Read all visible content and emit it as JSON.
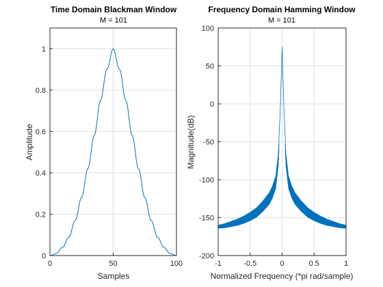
{
  "chart_data": [
    {
      "type": "line",
      "title": "Time Domain Blackman Window",
      "subtitle": "M = 101",
      "xlabel": "Samples",
      "ylabel": "Amplitude",
      "xlim": [
        0,
        100
      ],
      "ylim": [
        0,
        1.1
      ],
      "xticks": [
        "0",
        "50",
        "100"
      ],
      "yticks": [
        "0",
        "0.2",
        "0.4",
        "0.6",
        "0.8",
        "1"
      ],
      "grid": true,
      "color": "#0072bd",
      "series": [
        {
          "x": [
            0,
            5,
            10,
            15,
            20,
            25,
            30,
            35,
            40,
            45,
            50,
            55,
            60,
            65,
            70,
            75,
            80,
            85,
            90,
            95,
            100
          ],
          "y": [
            0.0,
            0.01,
            0.04,
            0.09,
            0.17,
            0.28,
            0.42,
            0.58,
            0.75,
            0.9,
            1.0,
            0.9,
            0.75,
            0.58,
            0.42,
            0.28,
            0.17,
            0.09,
            0.04,
            0.01,
            0.0
          ]
        }
      ]
    },
    {
      "type": "line",
      "title": "Frequency Domain Hamming Window",
      "subtitle": "M = 101",
      "xlabel": "Normalized Frequency (*pi rad/sample)",
      "ylabel": "Magnitude(dB)",
      "xlim": [
        -1,
        1
      ],
      "ylim": [
        -200,
        100
      ],
      "xticks": [
        "-1",
        "-0.5",
        "0",
        "0.5",
        "1"
      ],
      "yticks": [
        "-200",
        "-150",
        "-100",
        "-50",
        "0",
        "50",
        "100"
      ],
      "grid": true,
      "color": "#0072bd",
      "series": [
        {
          "x": [
            -1.0,
            -0.9,
            -0.8,
            -0.7,
            -0.6,
            -0.5,
            -0.4,
            -0.3,
            -0.2,
            -0.15,
            -0.1,
            -0.06,
            -0.03,
            0.0,
            0.03,
            0.06,
            0.1,
            0.15,
            0.2,
            0.3,
            0.4,
            0.5,
            0.6,
            0.7,
            0.8,
            0.9,
            1.0
          ],
          "y": [
            -160,
            -158,
            -155,
            -152,
            -148,
            -143,
            -137,
            -128,
            -117,
            -108,
            -95,
            -65,
            -10,
            75,
            -10,
            -65,
            -95,
            -108,
            -117,
            -128,
            -137,
            -143,
            -148,
            -152,
            -155,
            -158,
            -160
          ]
        }
      ]
    }
  ]
}
